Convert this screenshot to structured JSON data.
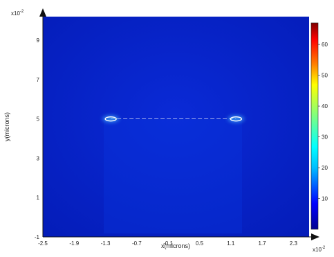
{
  "chart_data": {
    "type": "heatmap",
    "title": "",
    "xlabel": "x(microns)",
    "ylabel": "y(microns)",
    "x_exponent_label": "x10",
    "x_exponent_power": "-2",
    "y_exponent_label": "x10",
    "y_exponent_power": "-2",
    "xlim": [
      -2.5,
      2.6
    ],
    "ylim": [
      -1,
      10.2
    ],
    "x_ticks": [
      -2.5,
      -1.9,
      -1.3,
      -0.7,
      -0.1,
      0.5,
      1.1,
      1.7,
      2.3
    ],
    "x_tick_labels": [
      "-2.5",
      "-1.9",
      "-1.3",
      "-0.7",
      "-0.1",
      "0.5",
      "1.1",
      "1.7",
      "2.3"
    ],
    "y_ticks": [
      -1,
      1,
      3,
      5,
      7,
      9
    ],
    "y_tick_labels": [
      "-1",
      "1",
      "3",
      "5",
      "7",
      "9"
    ],
    "colorbar": {
      "range": [
        0,
        67
      ],
      "ticks": [
        10,
        20,
        30,
        40,
        50,
        60
      ],
      "tick_labels": [
        "10",
        "20",
        "30",
        "40",
        "50",
        "60"
      ],
      "colors": [
        "#00008f",
        "#0000ff",
        "#00bfff",
        "#00ffff",
        "#7fff7f",
        "#ffff00",
        "#ff7f00",
        "#ff0000",
        "#7f0000"
      ],
      "placement": "right"
    },
    "background_value": 3,
    "features": [
      {
        "shape": "horizontal-line",
        "x_start": -1.2,
        "x_end": 1.2,
        "y": 5.0,
        "value": 35
      },
      {
        "shape": "hotspot",
        "x": -1.2,
        "y": 5.0,
        "value": 55
      },
      {
        "shape": "hotspot",
        "x": 1.2,
        "y": 5.0,
        "value": 55
      }
    ],
    "grid": false
  }
}
